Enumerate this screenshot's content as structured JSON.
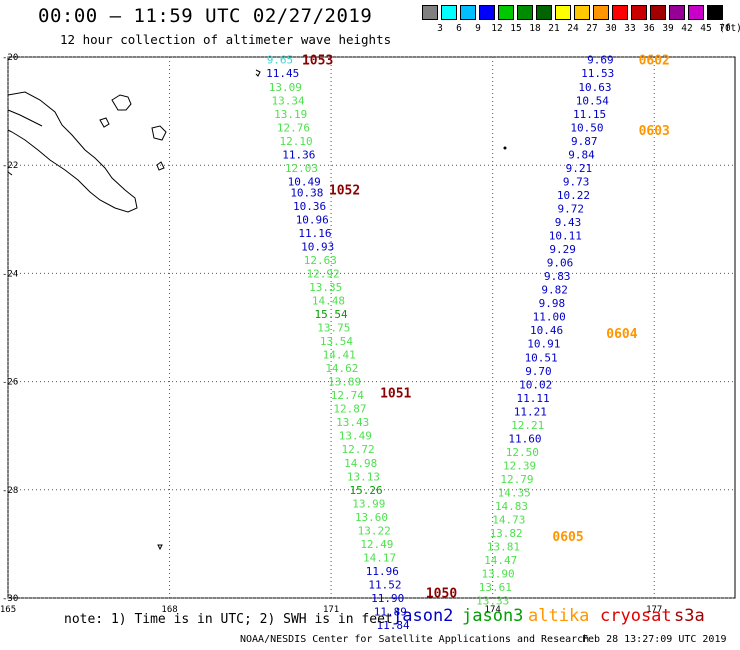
{
  "header": {
    "title": "00:00 – 11:59 UTC 02/27/2019",
    "subtitle": "12 hour collection of altimeter wave heights"
  },
  "color_scale": {
    "unit": "(ft)",
    "swatches": [
      {
        "label": "3",
        "color": "#808080"
      },
      {
        "label": "6",
        "color": "#00ffff"
      },
      {
        "label": "9",
        "color": "#00bfff"
      },
      {
        "label": "12",
        "color": "#0000ff"
      },
      {
        "label": "15",
        "color": "#00c800"
      },
      {
        "label": "18",
        "color": "#008c00"
      },
      {
        "label": "21",
        "color": "#006400"
      },
      {
        "label": "24",
        "color": "#ffff00"
      },
      {
        "label": "27",
        "color": "#ffc800"
      },
      {
        "label": "30",
        "color": "#ff9600"
      },
      {
        "label": "33",
        "color": "#ff0000"
      },
      {
        "label": "36",
        "color": "#c80000"
      },
      {
        "label": "39",
        "color": "#a00000"
      },
      {
        "label": "42",
        "color": "#960096"
      },
      {
        "label": "45",
        "color": "#c800c8"
      },
      {
        "label": "70",
        "color": "#000000"
      }
    ]
  },
  "axes": {
    "lat_labels": [
      "-20",
      "-22",
      "-24",
      "-26",
      "-28",
      "-30"
    ],
    "lon_labels": [
      "165",
      "168",
      "171",
      "174",
      "177"
    ],
    "lat_range": [
      -30,
      -20
    ],
    "lon_range": [
      165,
      178.5
    ]
  },
  "tracks": [
    {
      "id": "jason3-west",
      "label": "jason3",
      "points": [
        {
          "lon": 170.05,
          "lat": -20.05,
          "value": "9.65",
          "color": "#40d0d0"
        },
        {
          "lon": 170.1,
          "lat": -20.3,
          "value": "11.45",
          "color": "#0000c8"
        },
        {
          "lon": 170.15,
          "lat": -20.55,
          "value": "13.09",
          "color": "#50e050"
        },
        {
          "lon": 170.2,
          "lat": -20.8,
          "value": "13.34",
          "color": "#50e050"
        },
        {
          "lon": 170.25,
          "lat": -21.05,
          "value": "13.19",
          "color": "#50e050"
        },
        {
          "lon": 170.3,
          "lat": -21.3,
          "value": "12.76",
          "color": "#50e050"
        },
        {
          "lon": 170.35,
          "lat": -21.55,
          "value": "12.10",
          "color": "#50e050"
        },
        {
          "lon": 170.4,
          "lat": -21.8,
          "value": "11.36",
          "color": "#0000c8"
        },
        {
          "lon": 170.45,
          "lat": -22.05,
          "value": "12.03",
          "color": "#50e050"
        },
        {
          "lon": 170.5,
          "lat": -22.3,
          "value": "10.49",
          "color": "#0000c8"
        },
        {
          "lon": 170.55,
          "lat": -22.5,
          "value": "10.38",
          "color": "#0000c8"
        },
        {
          "lon": 170.6,
          "lat": -22.75,
          "value": "10.36",
          "color": "#0000c8"
        },
        {
          "lon": 170.65,
          "lat": -23.0,
          "value": "10.96",
          "color": "#0000c8"
        },
        {
          "lon": 170.7,
          "lat": -23.25,
          "value": "11.16",
          "color": "#0000c8"
        },
        {
          "lon": 170.75,
          "lat": -23.5,
          "value": "10.93",
          "color": "#0000c8"
        },
        {
          "lon": 170.8,
          "lat": -23.75,
          "value": "12.63",
          "color": "#50e050"
        },
        {
          "lon": 170.85,
          "lat": -24.0,
          "value": "12.92",
          "color": "#50e050"
        },
        {
          "lon": 170.9,
          "lat": -24.25,
          "value": "13.35",
          "color": "#50e050"
        },
        {
          "lon": 170.95,
          "lat": -24.5,
          "value": "14.48",
          "color": "#50e050"
        },
        {
          "lon": 171.0,
          "lat": -24.75,
          "value": "15.54",
          "color": "#00a000"
        },
        {
          "lon": 171.05,
          "lat": -25.0,
          "value": "13.75",
          "color": "#50e050"
        },
        {
          "lon": 171.1,
          "lat": -25.25,
          "value": "13.54",
          "color": "#50e050"
        },
        {
          "lon": 171.15,
          "lat": -25.5,
          "value": "14.41",
          "color": "#50e050"
        },
        {
          "lon": 171.2,
          "lat": -25.75,
          "value": "14.62",
          "color": "#50e050"
        },
        {
          "lon": 171.25,
          "lat": -26.0,
          "value": "13.89",
          "color": "#50e050"
        },
        {
          "lon": 171.3,
          "lat": -26.25,
          "value": "12.74",
          "color": "#50e050"
        },
        {
          "lon": 171.35,
          "lat": -26.5,
          "value": "12.87",
          "color": "#50e050"
        },
        {
          "lon": 171.4,
          "lat": -26.75,
          "value": "13.43",
          "color": "#50e050"
        },
        {
          "lon": 171.45,
          "lat": -27.0,
          "value": "13.49",
          "color": "#50e050"
        },
        {
          "lon": 171.5,
          "lat": -27.25,
          "value": "12.72",
          "color": "#50e050"
        },
        {
          "lon": 171.55,
          "lat": -27.5,
          "value": "14.98",
          "color": "#50e050"
        },
        {
          "lon": 171.6,
          "lat": -27.75,
          "value": "13.13",
          "color": "#50e050"
        },
        {
          "lon": 171.65,
          "lat": -28.0,
          "value": "15.26",
          "color": "#00a000"
        },
        {
          "lon": 171.7,
          "lat": -28.25,
          "value": "13.99",
          "color": "#50e050"
        },
        {
          "lon": 171.75,
          "lat": -28.5,
          "value": "13.60",
          "color": "#50e050"
        },
        {
          "lon": 171.8,
          "lat": -28.75,
          "value": "13.22",
          "color": "#50e050"
        },
        {
          "lon": 171.85,
          "lat": -29.0,
          "value": "12.49",
          "color": "#50e050"
        },
        {
          "lon": 171.9,
          "lat": -29.25,
          "value": "14.17",
          "color": "#50e050"
        },
        {
          "lon": 171.95,
          "lat": -29.5,
          "value": "11.96",
          "color": "#0000c8"
        },
        {
          "lon": 172.0,
          "lat": -29.75,
          "value": "11.52",
          "color": "#0000c8"
        },
        {
          "lon": 172.05,
          "lat": -30.0,
          "value": "11.90",
          "color": "#0000c8"
        },
        {
          "lon": 172.1,
          "lat": -30.25,
          "value": "11.89",
          "color": "#0000c8"
        },
        {
          "lon": 172.15,
          "lat": -30.5,
          "value": "11.84",
          "color": "#0000c8"
        }
      ],
      "time_labels": [
        {
          "lon": 170.75,
          "lat": -20.05,
          "text": "1053",
          "color": "#8b0000"
        },
        {
          "lon": 171.25,
          "lat": -22.45,
          "text": "1052",
          "color": "#8b0000"
        },
        {
          "lon": 172.2,
          "lat": -26.2,
          "text": "1051",
          "color": "#8b0000"
        },
        {
          "lon": 173.05,
          "lat": -29.9,
          "text": "1050",
          "color": "#8b0000"
        }
      ]
    },
    {
      "id": "jason2-east",
      "label": "jason2",
      "points": [
        {
          "lon": 176.0,
          "lat": -20.05,
          "value": "9.69",
          "color": "#0000c8"
        },
        {
          "lon": 175.95,
          "lat": -20.3,
          "value": "11.53",
          "color": "#0000c8"
        },
        {
          "lon": 175.9,
          "lat": -20.55,
          "value": "10.63",
          "color": "#0000c8"
        },
        {
          "lon": 175.85,
          "lat": -20.8,
          "value": "10.54",
          "color": "#0000c8"
        },
        {
          "lon": 175.8,
          "lat": -21.05,
          "value": "11.15",
          "color": "#0000c8"
        },
        {
          "lon": 175.75,
          "lat": -21.3,
          "value": "10.50",
          "color": "#0000c8"
        },
        {
          "lon": 175.7,
          "lat": -21.55,
          "value": "9.87",
          "color": "#0000c8"
        },
        {
          "lon": 175.65,
          "lat": -21.8,
          "value": "9.84",
          "color": "#0000c8"
        },
        {
          "lon": 175.6,
          "lat": -22.05,
          "value": "9.21",
          "color": "#0000c8"
        },
        {
          "lon": 175.55,
          "lat": -22.3,
          "value": "9.73",
          "color": "#0000c8"
        },
        {
          "lon": 175.5,
          "lat": -22.55,
          "value": "10.22",
          "color": "#0000c8"
        },
        {
          "lon": 175.45,
          "lat": -22.8,
          "value": "9.72",
          "color": "#0000c8"
        },
        {
          "lon": 175.4,
          "lat": -23.05,
          "value": "9.43",
          "color": "#0000c8"
        },
        {
          "lon": 175.35,
          "lat": -23.3,
          "value": "10.11",
          "color": "#0000c8"
        },
        {
          "lon": 175.3,
          "lat": -23.55,
          "value": "9.29",
          "color": "#0000c8"
        },
        {
          "lon": 175.25,
          "lat": -23.8,
          "value": "9.06",
          "color": "#0000c8"
        },
        {
          "lon": 175.2,
          "lat": -24.05,
          "value": "9.83",
          "color": "#0000c8"
        },
        {
          "lon": 175.15,
          "lat": -24.3,
          "value": "9.82",
          "color": "#0000c8"
        },
        {
          "lon": 175.1,
          "lat": -24.55,
          "value": "9.98",
          "color": "#0000c8"
        },
        {
          "lon": 175.05,
          "lat": -24.8,
          "value": "11.00",
          "color": "#0000c8"
        },
        {
          "lon": 175.0,
          "lat": -25.05,
          "value": "10.46",
          "color": "#0000c8"
        },
        {
          "lon": 174.95,
          "lat": -25.3,
          "value": "10.91",
          "color": "#0000c8"
        },
        {
          "lon": 174.9,
          "lat": -25.55,
          "value": "10.51",
          "color": "#0000c8"
        },
        {
          "lon": 174.85,
          "lat": -25.8,
          "value": "9.70",
          "color": "#0000c8"
        },
        {
          "lon": 174.8,
          "lat": -26.05,
          "value": "10.02",
          "color": "#0000c8"
        },
        {
          "lon": 174.75,
          "lat": -26.3,
          "value": "11.11",
          "color": "#0000c8"
        },
        {
          "lon": 174.7,
          "lat": -26.55,
          "value": "11.21",
          "color": "#0000c8"
        },
        {
          "lon": 174.65,
          "lat": -26.8,
          "value": "12.21",
          "color": "#50e050"
        },
        {
          "lon": 174.6,
          "lat": -27.05,
          "value": "11.60",
          "color": "#0000c8"
        },
        {
          "lon": 174.55,
          "lat": -27.3,
          "value": "12.50",
          "color": "#50e050"
        },
        {
          "lon": 174.5,
          "lat": -27.55,
          "value": "12.39",
          "color": "#50e050"
        },
        {
          "lon": 174.45,
          "lat": -27.8,
          "value": "12.79",
          "color": "#50e050"
        },
        {
          "lon": 174.4,
          "lat": -28.05,
          "value": "14.35",
          "color": "#50e050"
        },
        {
          "lon": 174.35,
          "lat": -28.3,
          "value": "14.83",
          "color": "#50e050"
        },
        {
          "lon": 174.3,
          "lat": -28.55,
          "value": "14.73",
          "color": "#50e050"
        },
        {
          "lon": 174.25,
          "lat": -28.8,
          "value": "13.82",
          "color": "#50e050"
        },
        {
          "lon": 174.2,
          "lat": -29.05,
          "value": "13.81",
          "color": "#50e050"
        },
        {
          "lon": 174.15,
          "lat": -29.3,
          "value": "14.47",
          "color": "#50e050"
        },
        {
          "lon": 174.1,
          "lat": -29.55,
          "value": "13.90",
          "color": "#50e050"
        },
        {
          "lon": 174.05,
          "lat": -29.8,
          "value": "13.61",
          "color": "#50e050"
        },
        {
          "lon": 174.0,
          "lat": -30.05,
          "value": "13.33",
          "color": "#50e050"
        }
      ],
      "time_labels": [
        {
          "lon": 177.0,
          "lat": -20.05,
          "text": "0602",
          "color": "#ff9600"
        },
        {
          "lon": 177.0,
          "lat": -21.35,
          "text": "0603",
          "color": "#ff9600"
        },
        {
          "lon": 176.4,
          "lat": -25.1,
          "text": "0604",
          "color": "#ff9600"
        },
        {
          "lon": 175.4,
          "lat": -28.85,
          "text": "0605",
          "color": "#ff9600"
        }
      ]
    }
  ],
  "legend": {
    "note": "note: 1) Time is in UTC; 2) SWH is in feet",
    "satellites": [
      {
        "name": "jason2",
        "color": "#0000c8"
      },
      {
        "name": "jason3",
        "color": "#00a000"
      },
      {
        "name": "altika",
        "color": "#ff9600"
      },
      {
        "name": "cryosat",
        "color": "#e00000"
      },
      {
        "name": "s3a",
        "color": "#a00000"
      }
    ]
  },
  "footer": {
    "credit": "NOAA/NESDIS Center for Satellite Applications and Research",
    "timestamp": "Feb 28 13:27:09 UTC 2019"
  }
}
